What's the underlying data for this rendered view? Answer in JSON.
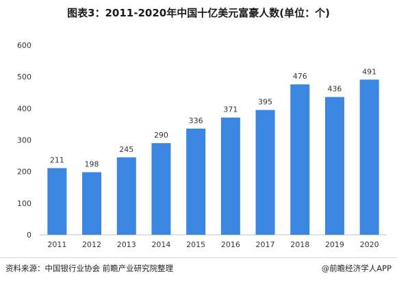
{
  "chart_data": {
    "type": "bar",
    "title": "图表3：2011-2020年中国十亿美元富豪人数(单位：个)",
    "categories": [
      "2011",
      "2012",
      "2013",
      "2014",
      "2015",
      "2016",
      "2017",
      "2018",
      "2019",
      "2020"
    ],
    "values": [
      211,
      198,
      245,
      290,
      336,
      371,
      395,
      476,
      436,
      491
    ],
    "ylim": [
      0,
      600
    ],
    "yticks": [
      "0",
      "100",
      "200",
      "300",
      "400",
      "500",
      "600"
    ],
    "grid": false,
    "legend": "none",
    "bar_color": "#3b86e0",
    "axis_color": "#bfbfbf",
    "label_color": "#333333"
  },
  "footer": {
    "source": "资料来源：中国银行业协会 前瞻产业研究院整理",
    "credit": "@前瞻经济学人APP"
  }
}
